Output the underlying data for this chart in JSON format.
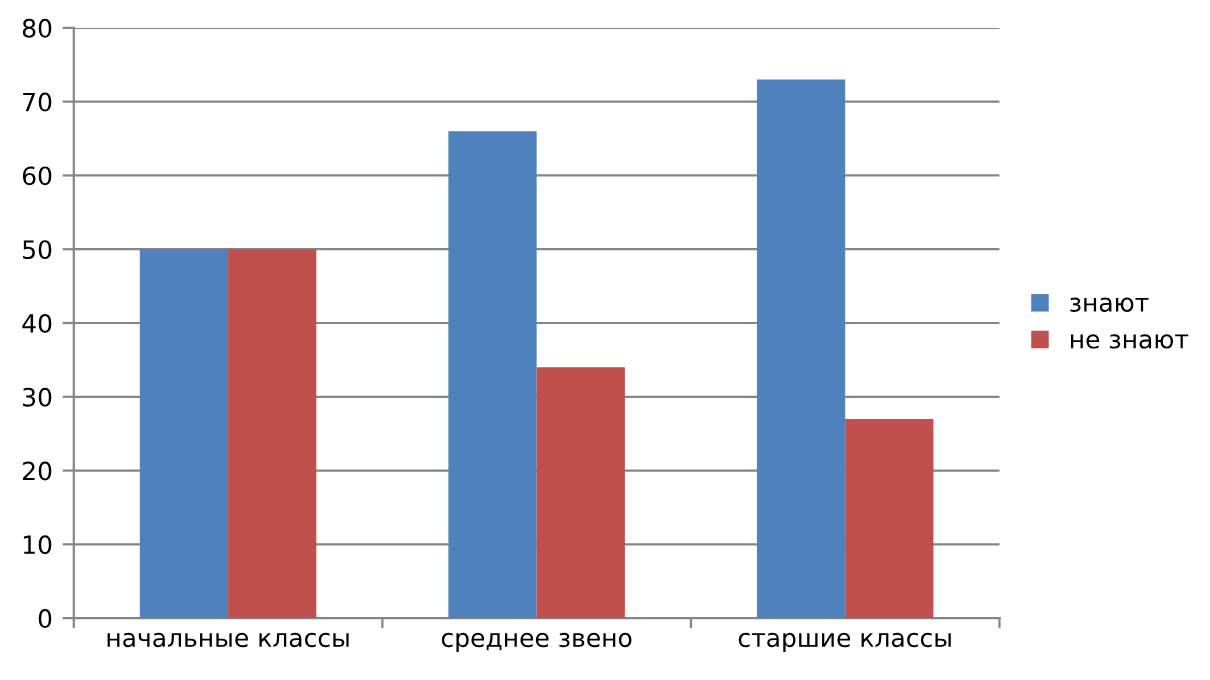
{
  "chart_data": {
    "type": "bar",
    "categories": [
      "начальные классы",
      "среднее звено",
      "старшие классы"
    ],
    "series": [
      {
        "name": "знают",
        "color": "#4f81bd",
        "values": [
          50,
          66,
          73
        ]
      },
      {
        "name": "не знают",
        "color": "#c0504d",
        "values": [
          50,
          34,
          27
        ]
      }
    ],
    "ylim": [
      0,
      80
    ],
    "yticks": [
      0,
      10,
      20,
      30,
      40,
      50,
      60,
      70,
      80
    ],
    "grid": "y",
    "legend": "right"
  }
}
